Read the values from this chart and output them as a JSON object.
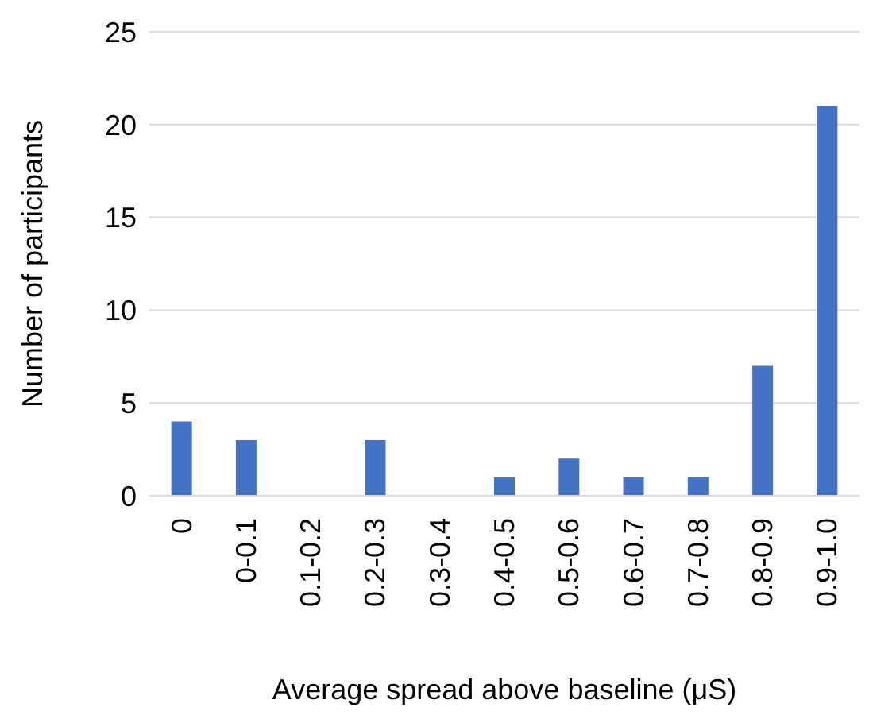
{
  "chart_data": {
    "type": "bar",
    "xlabel": "Average spread above baseline (μS)",
    "ylabel": "Number of participants",
    "categories": [
      "0",
      "0-0.1",
      "0.1-0.2",
      "0.2-0.3",
      "0.3-0.4",
      "0.4-0.5",
      "0.5-0.6",
      "0.6-0.7",
      "0.7-0.8",
      "0.8-0.9",
      "0.9-1.0"
    ],
    "values": [
      4,
      3,
      0,
      3,
      0,
      1,
      2,
      1,
      1,
      7,
      21
    ],
    "color": "#4472c4",
    "ylim": [
      0,
      25
    ],
    "yticks": [
      0,
      5,
      10,
      15,
      20,
      25
    ],
    "grid": "y",
    "legend": false
  }
}
